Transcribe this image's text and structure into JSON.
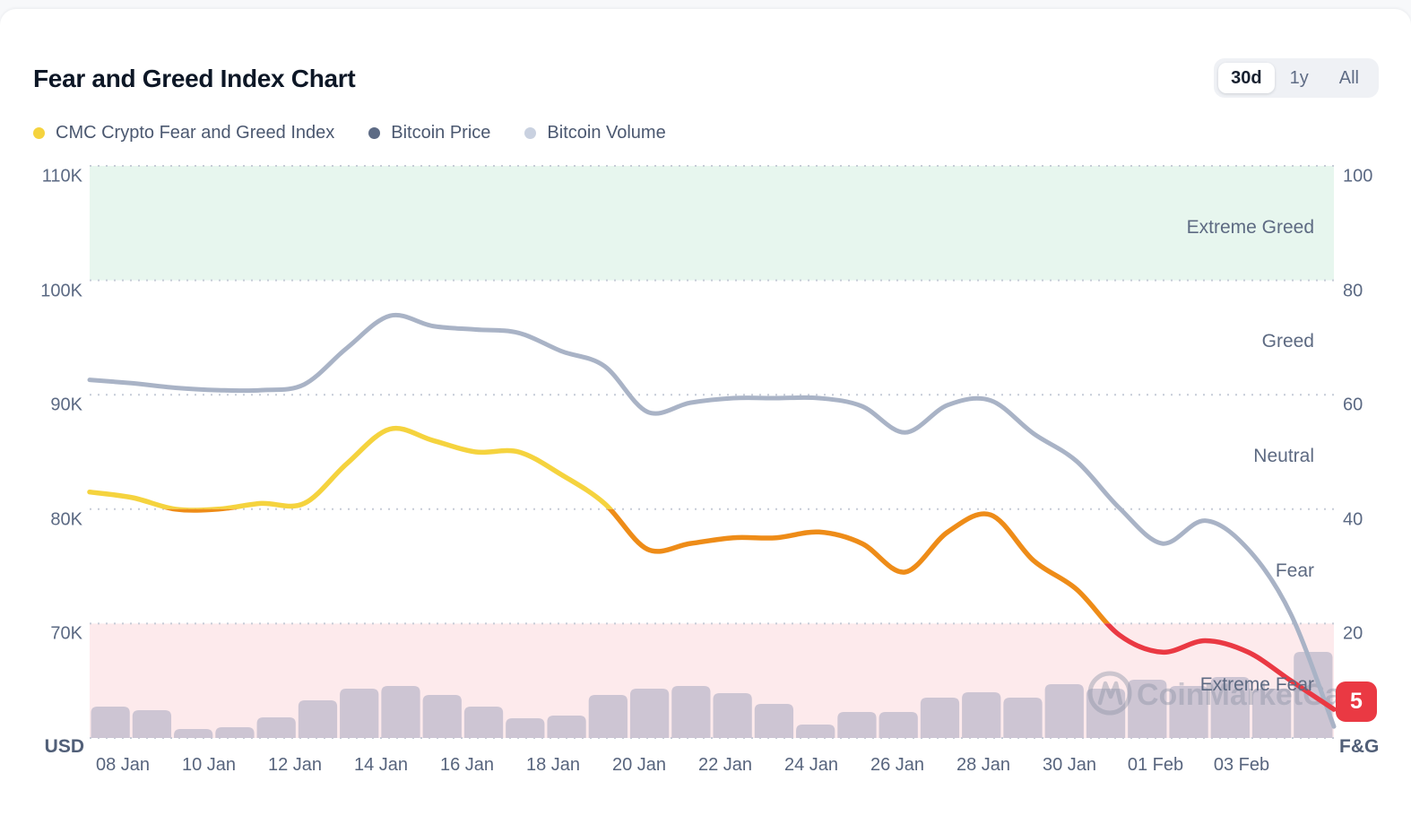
{
  "header": {
    "title": "Fear and Greed Index Chart",
    "range_selector": {
      "options": [
        "30d",
        "1y",
        "All"
      ],
      "selected": "30d"
    }
  },
  "legend": [
    {
      "label": "CMC Crypto Fear and Greed Index",
      "color": "#F5D33E"
    },
    {
      "label": "Bitcoin Price",
      "color": "#5D6B85"
    },
    {
      "label": "Bitcoin Volume",
      "color": "#C9D1E0"
    }
  ],
  "watermark": {
    "text": "CoinMarketCap"
  },
  "chart_data": {
    "type": "line",
    "title": "Fear and Greed Index Chart",
    "x_labels": [
      "08 Jan",
      "10 Jan",
      "12 Jan",
      "14 Jan",
      "16 Jan",
      "18 Jan",
      "20 Jan",
      "22 Jan",
      "24 Jan",
      "26 Jan",
      "28 Jan",
      "30 Jan",
      "01 Feb",
      "03 Feb"
    ],
    "left_axis": {
      "title": "USD",
      "ticks": [
        "110K",
        "100K",
        "90K",
        "80K",
        "70K"
      ],
      "range": [
        "60K",
        "110K"
      ]
    },
    "right_axis": {
      "title": "F&G",
      "ticks": [
        "100",
        "80",
        "60",
        "40",
        "20"
      ],
      "range": [
        0,
        100
      ]
    },
    "grid": "dotted horizontal",
    "zones": [
      {
        "label": "Extreme Greed",
        "range": [
          80,
          100
        ],
        "band_color": "#E7F6EE"
      },
      {
        "label": "Greed",
        "range": [
          60,
          80
        ],
        "band_color": null
      },
      {
        "label": "Neutral",
        "range": [
          40,
          60
        ],
        "band_color": null
      },
      {
        "label": "Fear",
        "range": [
          20,
          40
        ],
        "band_color": null
      },
      {
        "label": "Extreme Fear",
        "range": [
          0,
          20
        ],
        "band_color": "#FDEAEC"
      }
    ],
    "series": [
      {
        "name": "CMC Crypto Fear and Greed Index",
        "type": "line",
        "axis": "right",
        "zone_colors": {
          "above_40": "#F5D33E",
          "between_20_40": "#EE8C18",
          "below_20": "#EA3943"
        },
        "values": [
          43,
          42,
          40,
          40,
          41,
          41,
          48,
          54,
          52,
          50,
          50,
          46,
          41,
          33,
          34,
          35,
          35,
          36,
          34,
          29,
          36,
          39,
          31,
          26,
          18,
          15,
          17,
          15,
          10,
          5
        ]
      },
      {
        "name": "Bitcoin Price",
        "type": "line",
        "axis": "left",
        "unit": "K USD",
        "color": "#A9B3C6",
        "values": [
          91.3,
          91.0,
          90.6,
          90.4,
          90.4,
          90.9,
          94.1,
          96.9,
          96.0,
          95.7,
          95.4,
          93.8,
          92.5,
          88.5,
          89.3,
          89.7,
          89.7,
          89.7,
          89.0,
          86.7,
          89.1,
          89.5,
          86.6,
          84.2,
          80.1,
          77.0,
          79.0,
          76.5,
          70.8,
          61.0
        ]
      },
      {
        "name": "Bitcoin Volume",
        "type": "bar",
        "unit": "relative",
        "color": "#CDC5D3",
        "values": [
          35,
          31,
          10,
          12,
          23,
          42,
          55,
          58,
          48,
          35,
          22,
          25,
          48,
          55,
          58,
          50,
          38,
          15,
          29,
          29,
          45,
          51,
          45,
          60,
          55,
          65,
          58,
          68,
          55,
          96
        ]
      }
    ],
    "current_value_badge": {
      "value": "5",
      "color": "#EA3943",
      "series": "CMC Crypto Fear and Greed Index"
    },
    "legend_position": "top-left"
  }
}
